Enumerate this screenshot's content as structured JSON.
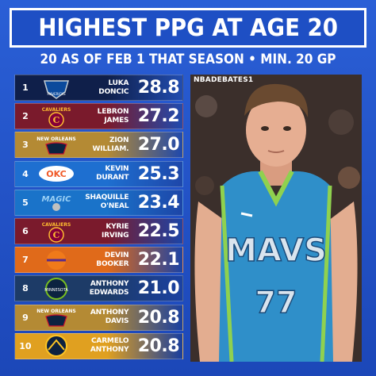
{
  "title": "HIGHEST PPG AT AGE 20",
  "subtitle": "20 AS OF FEB 1 THAT SEASON • MIN. 20 GP",
  "watermark": "NBADEBATES1",
  "jersey": {
    "team_word": "MAVS",
    "number": "77"
  },
  "rows": [
    {
      "rank": "1",
      "name": "LUKA\nDONCIC",
      "ppg": "28.8",
      "team_logo": "mavericks-logo",
      "color": "#0f1f4a",
      "logo_text": "MAVERICKS"
    },
    {
      "rank": "2",
      "name": "LEBRON\nJAMES",
      "ppg": "27.2",
      "team_logo": "cavaliers-logo",
      "color": "#7a1a2c",
      "logo_text": "CAVALIERS"
    },
    {
      "rank": "3",
      "name": "ZION\nWILLIAM.",
      "ppg": "27.0",
      "team_logo": "pelicans-logo",
      "color": "#b48a34",
      "logo_text": "NEW ORLEANS"
    },
    {
      "rank": "4",
      "name": "KEVIN\nDURANT",
      "ppg": "25.3",
      "team_logo": "thunder-logo",
      "color": "#1e6fd0",
      "logo_text": "OKC"
    },
    {
      "rank": "5",
      "name": "SHAQUILLE\nO'NEAL",
      "ppg": "23.4",
      "team_logo": "magic-logo",
      "color": "#1a73c9",
      "logo_text": "MAGIC"
    },
    {
      "rank": "6",
      "name": "KYRIE\nIRVING",
      "ppg": "22.5",
      "team_logo": "cavaliers-logo",
      "color": "#7a1a2c",
      "logo_text": "CAVALIERS"
    },
    {
      "rank": "7",
      "name": "DEVIN\nBOOKER",
      "ppg": "22.1",
      "team_logo": "suns-logo",
      "color": "#e06a1a",
      "logo_text": ""
    },
    {
      "rank": "8",
      "name": "ANTHONY\nEDWARDS",
      "ppg": "21.0",
      "team_logo": "timberwolves-logo",
      "color": "#1d3b67",
      "logo_text": "MINNESOTA"
    },
    {
      "rank": "9",
      "name": "ANTHONY\nDAVIS",
      "ppg": "20.8",
      "team_logo": "pelicans-logo",
      "color": "#b48a34",
      "logo_text": "NEW ORLEANS"
    },
    {
      "rank": "10",
      "name": "CARMELO\nANTHONY",
      "ppg": "20.8",
      "team_logo": "nuggets-logo",
      "color": "#e0a020",
      "logo_text": ""
    }
  ]
}
